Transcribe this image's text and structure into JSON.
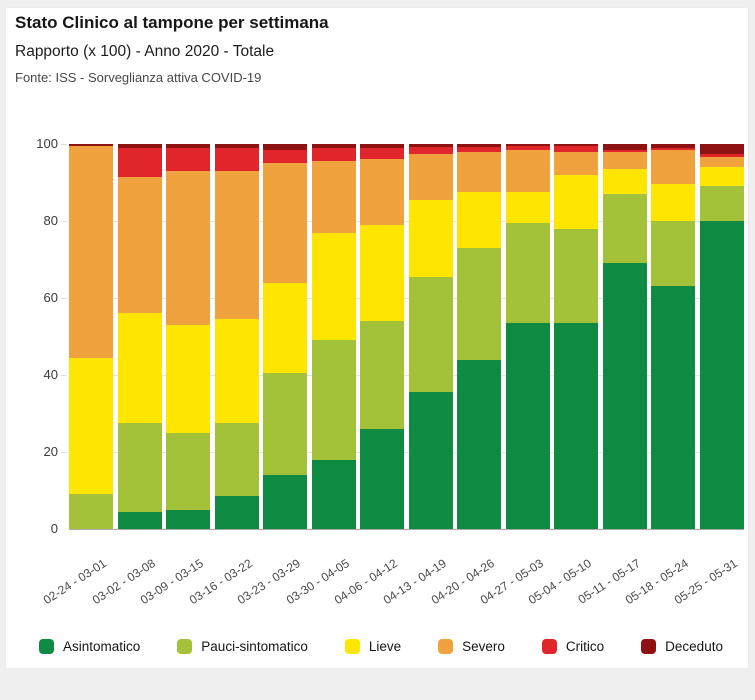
{
  "header": {
    "title": "Stato Clinico al tampone per settimana",
    "subtitle": "Rapporto (x 100) - Anno 2020 - Totale",
    "source": "Fonte: ISS - Sorveglianza attiva COVID-19"
  },
  "chart_data": {
    "type": "bar",
    "stacked": true,
    "unit": "percent (rapporto x 100)",
    "title": "Stato Clinico al tampone per settimana",
    "xlabel": "",
    "ylabel": "",
    "ylim": [
      0,
      100
    ],
    "yticks": [
      0,
      20,
      40,
      60,
      80,
      100
    ],
    "grid": true,
    "legend_position": "bottom",
    "categories": [
      "02-24 - 03-01",
      "03-02 - 03-08",
      "03-09 - 03-15",
      "03-16 - 03-22",
      "03-23 - 03-29",
      "03-30 - 04-05",
      "04-06 - 04-12",
      "04-13 - 04-19",
      "04-20 - 04-26",
      "04-27 - 05-03",
      "05-04 - 05-10",
      "05-11 - 05-17",
      "05-18 - 05-24",
      "05-25 - 05-31"
    ],
    "series": [
      {
        "name": "Asintomatico",
        "color": "#0e8a42",
        "values": [
          0,
          4.5,
          5,
          8.5,
          14,
          18,
          26,
          35.5,
          44,
          53.5,
          53.5,
          69,
          63,
          80
        ]
      },
      {
        "name": "Pauci-sintomatico",
        "color": "#a4c13a",
        "values": [
          9,
          23,
          20,
          19,
          26.5,
          31,
          28,
          30,
          29,
          26,
          24.5,
          18,
          17,
          9
        ]
      },
      {
        "name": "Lieve",
        "color": "#ffe500",
        "values": [
          35.5,
          28.5,
          28,
          27,
          23.5,
          28,
          25,
          20,
          14.5,
          8,
          14,
          6.5,
          9.5,
          5
        ]
      },
      {
        "name": "Severo",
        "color": "#f0a23e",
        "values": [
          55,
          35.5,
          40,
          38.5,
          31,
          18.5,
          17,
          11.8,
          10.5,
          11,
          6,
          4.5,
          9,
          2.5
        ]
      },
      {
        "name": "Critico",
        "color": "#e0262a",
        "values": [
          0,
          7.5,
          6,
          6,
          3.5,
          3.5,
          3,
          2,
          1.3,
          1,
          1.5,
          0.5,
          0.5,
          1
        ]
      },
      {
        "name": "Deceduto",
        "color": "#8e1212",
        "values": [
          0.5,
          1,
          1,
          1,
          1.5,
          1,
          1,
          0.7,
          0.7,
          0.5,
          0.5,
          1.5,
          1,
          2.5
        ]
      }
    ]
  }
}
